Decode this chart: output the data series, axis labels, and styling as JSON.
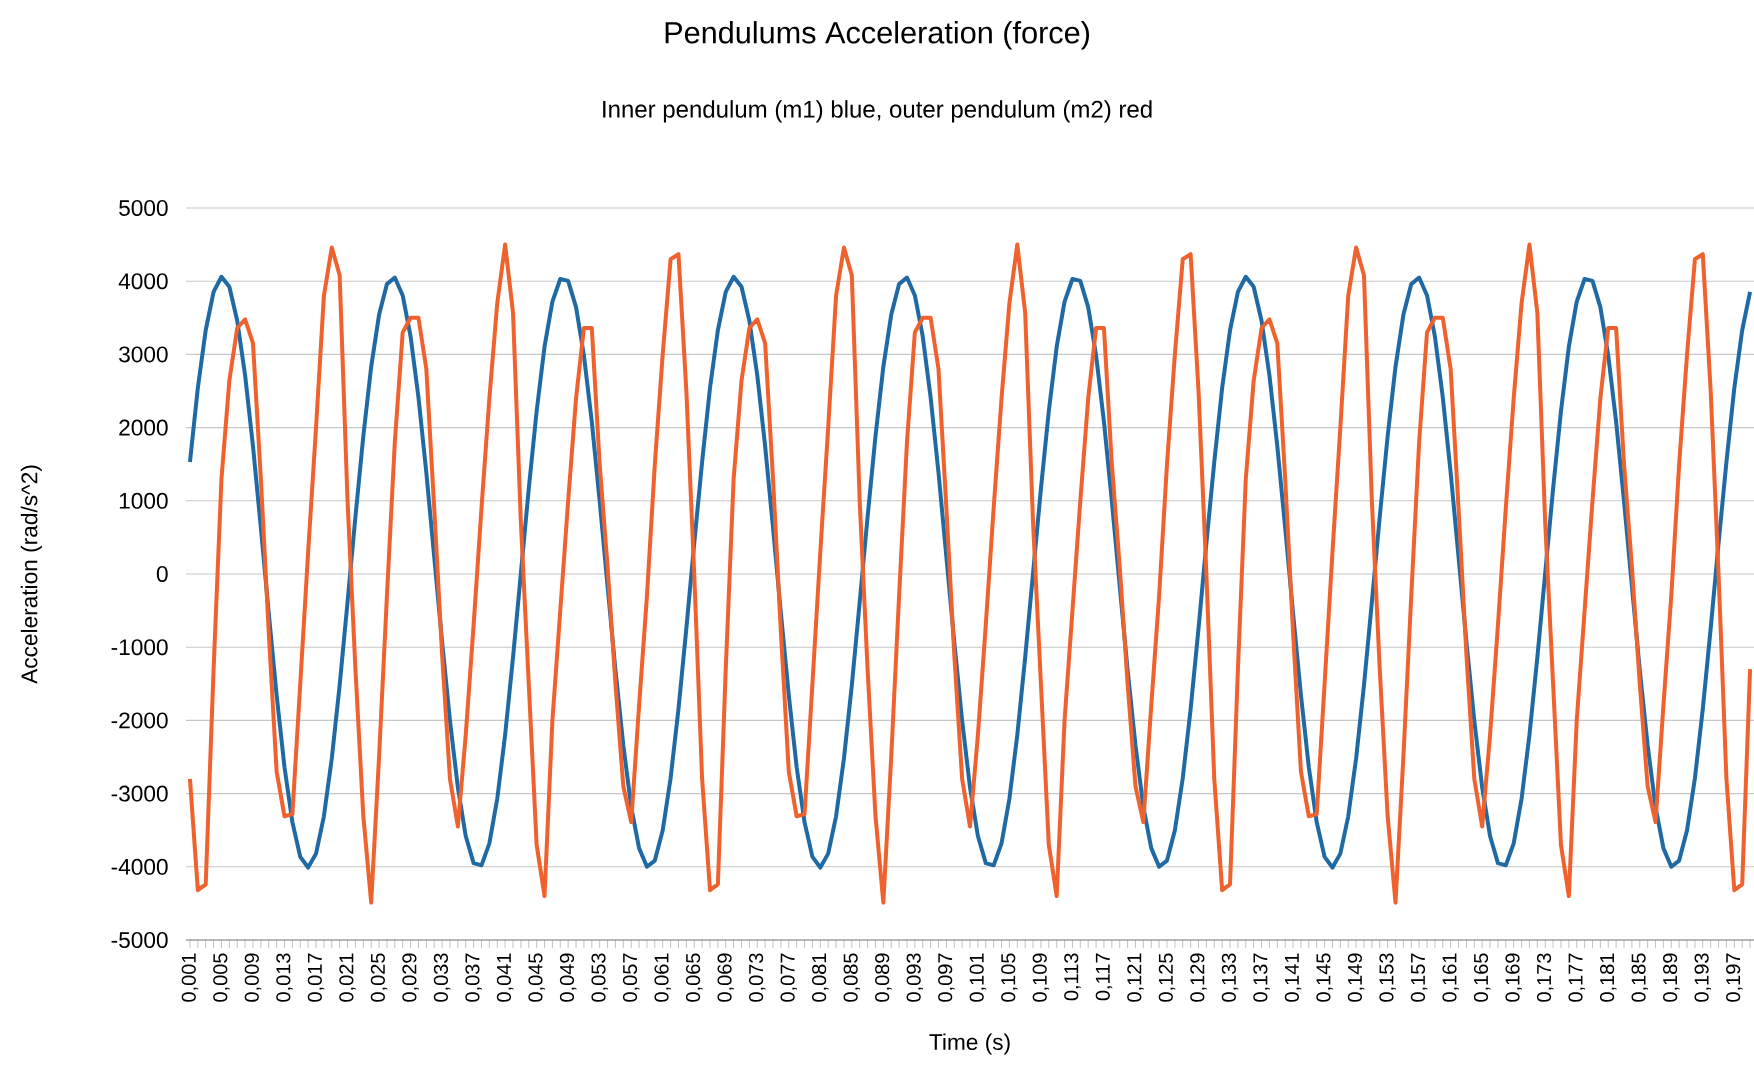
{
  "chart_data": {
    "type": "line",
    "title": "Pendulums Acceleration (force)",
    "subtitle": "Inner pendulum (m1) blue, outer pendulum (m2) red",
    "xlabel": "Time (s)",
    "ylabel": "Acceleration (rad/s^2)",
    "categories": [
      "0,001",
      null,
      null,
      null,
      "0,005",
      null,
      null,
      null,
      "0,009",
      null,
      null,
      null,
      "0,013",
      null,
      null,
      null,
      "0,017",
      null,
      null,
      null,
      "0,021",
      null,
      null,
      null,
      "0,025",
      null,
      null,
      null,
      "0,029",
      null,
      null,
      null,
      "0,033",
      null,
      null,
      null,
      "0,037",
      null,
      null,
      null,
      "0,041",
      null,
      null,
      null,
      "0,045",
      null,
      null,
      null,
      "0,049",
      null,
      null,
      null,
      "0,053",
      null,
      null,
      null,
      "0,057",
      null,
      null,
      null,
      "0,061",
      null,
      null,
      null,
      "0,065",
      null,
      null,
      null,
      "0,069",
      null,
      null,
      null,
      "0,073",
      null,
      null,
      null,
      "0,077",
      null,
      null,
      null,
      "0,081",
      null,
      null,
      null,
      "0,085",
      null,
      null,
      null,
      "0,089",
      null,
      null,
      null,
      "0,093",
      null,
      null,
      null,
      "0,097",
      null,
      null,
      null,
      "0,101",
      null,
      null,
      null,
      "0,105",
      null,
      null,
      null,
      "0,109",
      null,
      null,
      null,
      "0,113",
      null,
      null,
      null,
      "0,117",
      null,
      null,
      null,
      "0,121",
      null,
      null,
      null,
      "0,125",
      null,
      null,
      null,
      "0,129",
      null,
      null,
      null,
      "0,133",
      null,
      null,
      null,
      "0,137",
      null,
      null,
      null,
      "0,141",
      null,
      null,
      null,
      "0,145",
      null,
      null,
      null,
      "0,149",
      null,
      null,
      null,
      "0,153",
      null,
      null,
      null,
      "0,157",
      null,
      null,
      null,
      "0,161",
      null,
      null,
      null,
      "0,165",
      null,
      null,
      null,
      "0,169",
      null,
      null,
      null,
      "0,173",
      null,
      null,
      null,
      "0,177",
      null,
      null,
      null,
      "0,181",
      null,
      null,
      null,
      "0,185",
      null,
      null,
      null,
      "0,189",
      null,
      null,
      null,
      "0,193",
      null,
      null,
      null,
      "0,197",
      null,
      null
    ],
    "series": [
      {
        "color": "#1f6aa5",
        "values": [
          1530,
          2540,
          3330,
          3855,
          4060,
          3925,
          3460,
          2715,
          1745,
          630,
          -535,
          -1655,
          -2640,
          -3390,
          -3865,
          -4010,
          -3820,
          -3310,
          -2520,
          -1520,
          -385,
          780,
          1880,
          2830,
          3540,
          3960,
          4050,
          3805,
          3245,
          2415,
          1385,
          235,
          -925,
          -2005,
          -2915,
          -3580,
          -3950,
          -3980,
          -3680,
          -3070,
          -2200,
          -1140,
          10,
          1165,
          2225,
          3105,
          3720,
          4030,
          4005,
          3645,
          2985,
          2080,
          995,
          -165,
          -1310,
          -2340,
          -3180,
          -3745,
          -4000,
          -3915,
          -3500,
          -2790,
          -1845,
          -745,
          420,
          1530,
          2540,
          3330,
          3855,
          4060,
          3925,
          3460,
          2715,
          1745,
          630,
          -535,
          -1655,
          -2640,
          -3390,
          -3865,
          -4010,
          -3820,
          -3310,
          -2520,
          -1520,
          -385,
          780,
          1880,
          2830,
          3540,
          3960,
          4050,
          3805,
          3245,
          2415,
          1385,
          235,
          -925,
          -2005,
          -2915,
          -3580,
          -3950,
          -3980,
          -3680,
          -3070,
          -2200,
          -1140,
          10,
          1165,
          2225,
          3105,
          3720,
          4030,
          4005,
          3645,
          2985,
          2080,
          995,
          -165,
          -1310,
          -2340,
          -3180,
          -3745,
          -4000,
          -3915,
          -3500,
          -2790,
          -1845,
          -745,
          420,
          1530,
          2540,
          3330,
          3855,
          4060,
          3925,
          3460,
          2715,
          1745,
          630,
          -535,
          -1655,
          -2640,
          -3390,
          -3865,
          -4010,
          -3820,
          -3310,
          -2520,
          -1520,
          -385,
          780,
          1880,
          2830,
          3540,
          3960,
          4050,
          3805,
          3245,
          2415,
          1385,
          235,
          -925,
          -2005,
          -2915,
          -3580,
          -3950,
          -3980,
          -3680,
          -3070,
          -2200,
          -1140,
          10,
          1165,
          2225,
          3105,
          3720,
          4030,
          4005,
          3645,
          2985,
          2080,
          995,
          -165,
          -1310,
          -2340,
          -3180,
          -3745,
          -4000,
          -3915,
          -3500,
          -2790,
          -1845,
          -745,
          420,
          1530,
          2540,
          3330,
          3855
        ]
      },
      {
        "color": "#f0622d",
        "values": [
          -2800,
          -4320,
          -4240,
          -1300,
          1300,
          2640,
          3360,
          3480,
          3150,
          1300,
          -800,
          -2700,
          -3310,
          -3280,
          -1500,
          300,
          2000,
          3800,
          4460,
          4080,
          1000,
          -1300,
          -3300,
          -4490,
          -2500,
          -300,
          1800,
          3300,
          3500,
          3500,
          2800,
          900,
          -1100,
          -2800,
          -3450,
          -2200,
          -700,
          900,
          2400,
          3700,
          4500,
          3570,
          700,
          -1500,
          -3700,
          -4400,
          -2000,
          -500,
          1000,
          2400,
          3360,
          3360,
          1500,
          100,
          -1500,
          -2900,
          -3390,
          -1800,
          -300,
          1500,
          3000,
          4300,
          4370,
          2500,
          0,
          -2800,
          -4320,
          -4240,
          -1300,
          1300,
          2640,
          3360,
          3480,
          3150,
          1300,
          -800,
          -2700,
          -3310,
          -3280,
          -1500,
          300,
          2000,
          3800,
          4460,
          4080,
          1000,
          -1300,
          -3300,
          -4490,
          -2500,
          -300,
          1800,
          3300,
          3500,
          3500,
          2800,
          900,
          -1100,
          -2800,
          -3450,
          -2200,
          -700,
          900,
          2400,
          3700,
          4500,
          3570,
          700,
          -1500,
          -3700,
          -4400,
          -2000,
          -500,
          1000,
          2400,
          3360,
          3360,
          1500,
          100,
          -1500,
          -2900,
          -3390,
          -1800,
          -300,
          1500,
          3000,
          4300,
          4370,
          2500,
          0,
          -2800,
          -4320,
          -4240,
          -1300,
          1300,
          2640,
          3360,
          3480,
          3150,
          1300,
          -800,
          -2700,
          -3310,
          -3280,
          -1500,
          300,
          2000,
          3800,
          4460,
          4080,
          1000,
          -1300,
          -3300,
          -4490,
          -2500,
          -300,
          1800,
          3300,
          3500,
          3500,
          2800,
          900,
          -1100,
          -2800,
          -3450,
          -2200,
          -700,
          900,
          2400,
          3700,
          4500,
          3570,
          700,
          -1500,
          -3700,
          -4400,
          -2000,
          -500,
          1000,
          2400,
          3360,
          3360,
          1500,
          100,
          -1500,
          -2900,
          -3390,
          -1800,
          -300,
          1500,
          3000,
          4300,
          4370,
          2500,
          0,
          -2800,
          -4320,
          -4240,
          -1300
        ]
      }
    ],
    "ylim": [
      -5000,
      5000
    ],
    "yticks": [
      -5000,
      -4000,
      -3000,
      -2000,
      -1000,
      0,
      1000,
      2000,
      3000,
      4000,
      5000
    ],
    "grid": "y",
    "marker": "none"
  }
}
